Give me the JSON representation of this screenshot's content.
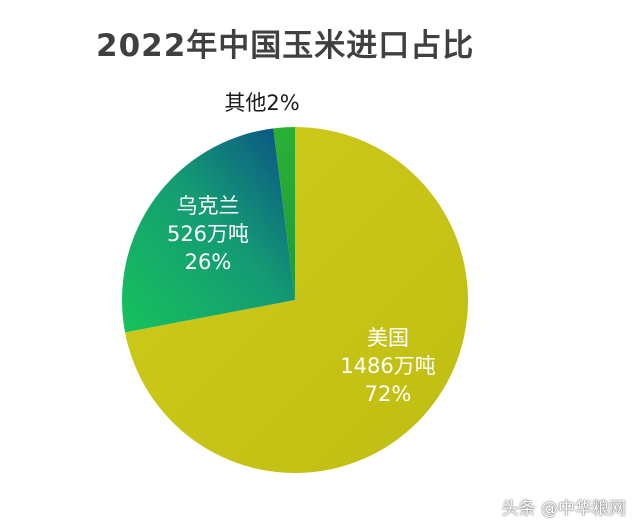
{
  "chart_data": {
    "type": "pie",
    "title": "2022年中国玉米进口占比",
    "slices": [
      {
        "name": "美国",
        "value": 72,
        "amount": "1486万吨",
        "percent_label": "72%",
        "color": "#c6c314"
      },
      {
        "name": "乌克兰",
        "value": 26,
        "amount": "526万吨",
        "percent_label": "26%",
        "color": "#1a9a6e"
      },
      {
        "name": "其他",
        "value": 2,
        "amount": "",
        "percent_label": "2%",
        "color": "#22a33a"
      }
    ],
    "start_angle_deg": 0,
    "direction": "clockwise",
    "legend": "none"
  },
  "watermark": "头条 @中华粮网"
}
